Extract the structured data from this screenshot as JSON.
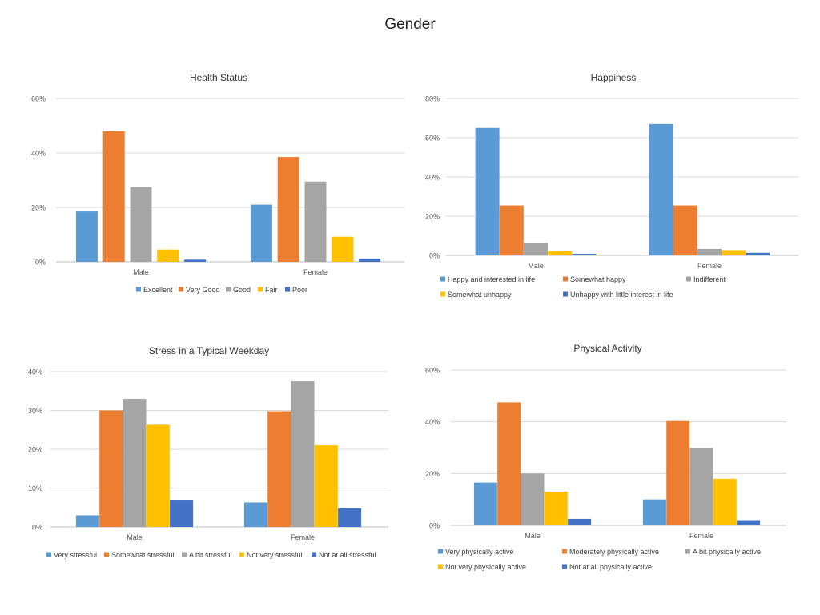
{
  "page_title": "Gender",
  "chart_data": [
    {
      "type": "bar",
      "title": "Health Status",
      "categories": [
        "Male",
        "Female"
      ],
      "ylim": [
        0,
        60
      ],
      "yticks": [
        0,
        20,
        40,
        60
      ],
      "ytick_labels": [
        "0%",
        "20%",
        "40%",
        "60%"
      ],
      "series": [
        {
          "name": "Excellent",
          "color": "#5B9BD5",
          "values": [
            18.5,
            21
          ]
        },
        {
          "name": "Very Good",
          "color": "#ED7D31",
          "values": [
            48,
            38.5
          ]
        },
        {
          "name": "Good",
          "color": "#A5A5A5",
          "values": [
            27.5,
            29.5
          ]
        },
        {
          "name": "Fair",
          "color": "#FFC000",
          "values": [
            4.5,
            9.2
          ]
        },
        {
          "name": "Poor",
          "color": "#4472C4",
          "values": [
            0.8,
            1.2
          ]
        }
      ],
      "legend": "bottom",
      "grid": true
    },
    {
      "type": "bar",
      "title": "Happiness",
      "categories": [
        "Male",
        "Female"
      ],
      "ylim": [
        0,
        80
      ],
      "yticks": [
        0,
        20,
        40,
        60,
        80
      ],
      "ytick_labels": [
        "0%",
        "20%",
        "40%",
        "60%",
        "80%"
      ],
      "series": [
        {
          "name": "Happy and interested in life",
          "color": "#5B9BD5",
          "values": [
            65,
            67
          ]
        },
        {
          "name": "Somewhat happy",
          "color": "#ED7D31",
          "values": [
            25.5,
            25.5
          ]
        },
        {
          "name": "Indifferent",
          "color": "#A5A5A5",
          "values": [
            6.3,
            3.3
          ]
        },
        {
          "name": "Somewhat unhappy",
          "color": "#FFC000",
          "values": [
            2.3,
            2.7
          ]
        },
        {
          "name": "Unhappy with little interest in life",
          "color": "#4472C4",
          "values": [
            0.8,
            1.3
          ]
        }
      ],
      "legend": "bottom",
      "grid": true
    },
    {
      "type": "bar",
      "title": "Stress in a Typical Weekday",
      "categories": [
        "Male",
        "Female"
      ],
      "ylim": [
        0,
        40
      ],
      "yticks": [
        0,
        10,
        20,
        30,
        40
      ],
      "ytick_labels": [
        "0%",
        "10%",
        "20%",
        "30%",
        "40%"
      ],
      "series": [
        {
          "name": "Very stressful",
          "color": "#5B9BD5",
          "values": [
            3,
            6.3
          ]
        },
        {
          "name": "Somewhat stressful",
          "color": "#ED7D31",
          "values": [
            30,
            29.8
          ]
        },
        {
          "name": "A bit stressful",
          "color": "#A5A5A5",
          "values": [
            33,
            37.5
          ]
        },
        {
          "name": "Not very stressful",
          "color": "#FFC000",
          "values": [
            26.3,
            21
          ]
        },
        {
          "name": "Not at all stressful",
          "color": "#4472C4",
          "values": [
            7,
            4.8
          ]
        }
      ],
      "legend": "bottom",
      "grid": true
    },
    {
      "type": "bar",
      "title": "Physical Activity",
      "categories": [
        "Male",
        "Female"
      ],
      "ylim": [
        0,
        60
      ],
      "yticks": [
        0,
        20,
        40,
        60
      ],
      "ytick_labels": [
        "0%",
        "20%",
        "40%",
        "60%"
      ],
      "series": [
        {
          "name": "Very physically active",
          "color": "#5B9BD5",
          "values": [
            16.5,
            10
          ]
        },
        {
          "name": "Moderately physically active",
          "color": "#ED7D31",
          "values": [
            47.5,
            40.3
          ]
        },
        {
          "name": "A bit physically active",
          "color": "#A5A5A5",
          "values": [
            20,
            29.8
          ]
        },
        {
          "name": "Not very physically active",
          "color": "#FFC000",
          "values": [
            13,
            18
          ]
        },
        {
          "name": "Not at all physically active",
          "color": "#4472C4",
          "values": [
            2.5,
            2
          ]
        }
      ],
      "legend": "bottom",
      "grid": true
    }
  ]
}
